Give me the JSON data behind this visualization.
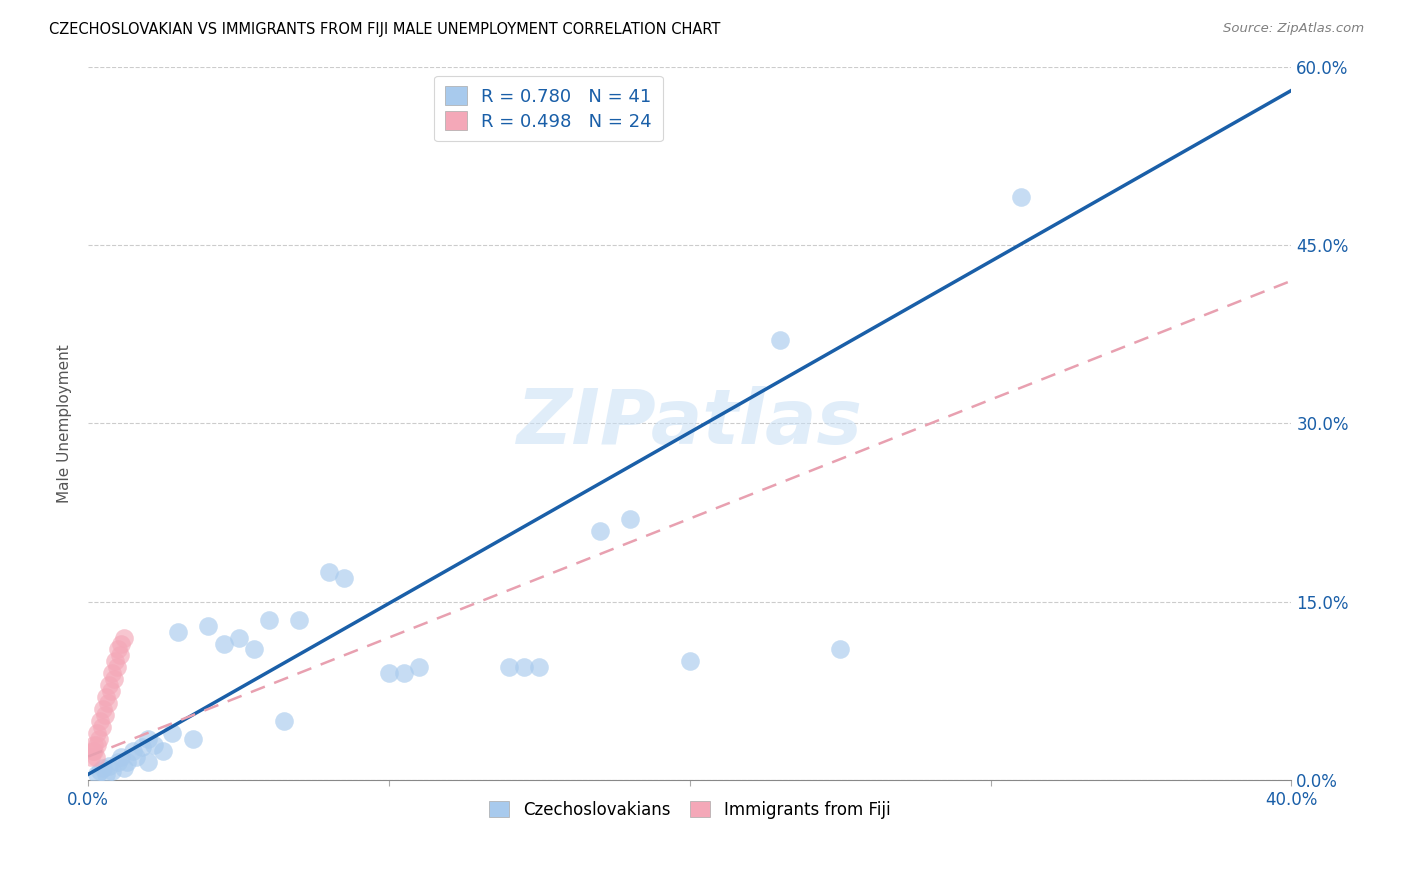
{
  "title": "CZECHOSLOVAKIAN VS IMMIGRANTS FROM FIJI MALE UNEMPLOYMENT CORRELATION CHART",
  "source": "Source: ZipAtlas.com",
  "ylabel": "Male Unemployment",
  "ytick_values": [
    0.0,
    15.0,
    30.0,
    45.0,
    60.0
  ],
  "xtick_values": [
    0.0,
    10.0,
    20.0,
    30.0,
    40.0
  ],
  "xtick_labels_show": [
    true,
    false,
    false,
    false,
    true
  ],
  "xlim": [
    0.0,
    40.0
  ],
  "ylim": [
    0.0,
    60.0
  ],
  "legend_blue": {
    "r": 0.78,
    "n": 41,
    "label": "Czechoslovakians"
  },
  "legend_pink": {
    "r": 0.498,
    "n": 24,
    "label": "Immigrants from Fiji"
  },
  "blue_color": "#A8CAED",
  "pink_color": "#F4A8B8",
  "blue_line_color": "#1A5FA8",
  "pink_line_color": "#E8A0B0",
  "watermark": "ZIPatlas",
  "blue_line": [
    [
      0.0,
      0.5
    ],
    [
      40.0,
      58.0
    ]
  ],
  "pink_line": [
    [
      0.0,
      2.0
    ],
    [
      40.0,
      42.0
    ]
  ],
  "blue_scatter": [
    [
      0.3,
      0.5
    ],
    [
      0.4,
      0.8
    ],
    [
      0.5,
      1.0
    ],
    [
      0.6,
      0.5
    ],
    [
      0.7,
      1.2
    ],
    [
      0.8,
      0.8
    ],
    [
      1.0,
      1.5
    ],
    [
      1.1,
      2.0
    ],
    [
      1.2,
      1.0
    ],
    [
      1.3,
      1.5
    ],
    [
      1.5,
      2.5
    ],
    [
      1.6,
      2.0
    ],
    [
      1.8,
      2.8
    ],
    [
      2.0,
      3.5
    ],
    [
      2.2,
      3.0
    ],
    [
      2.5,
      2.5
    ],
    [
      2.8,
      4.0
    ],
    [
      3.0,
      12.5
    ],
    [
      3.5,
      3.5
    ],
    [
      4.0,
      13.0
    ],
    [
      4.5,
      11.5
    ],
    [
      5.0,
      12.0
    ],
    [
      5.5,
      11.0
    ],
    [
      6.0,
      13.5
    ],
    [
      6.5,
      5.0
    ],
    [
      7.0,
      13.5
    ],
    [
      8.0,
      17.5
    ],
    [
      8.5,
      17.0
    ],
    [
      10.0,
      9.0
    ],
    [
      10.5,
      9.0
    ],
    [
      11.0,
      9.5
    ],
    [
      14.0,
      9.5
    ],
    [
      14.5,
      9.5
    ],
    [
      15.0,
      9.5
    ],
    [
      17.0,
      21.0
    ],
    [
      18.0,
      22.0
    ],
    [
      20.0,
      10.0
    ],
    [
      23.0,
      37.0
    ],
    [
      25.0,
      11.0
    ],
    [
      31.0,
      49.0
    ],
    [
      2.0,
      1.5
    ]
  ],
  "pink_scatter": [
    [
      0.1,
      2.0
    ],
    [
      0.15,
      2.5
    ],
    [
      0.2,
      3.0
    ],
    [
      0.25,
      2.0
    ],
    [
      0.3,
      4.0
    ],
    [
      0.35,
      3.5
    ],
    [
      0.4,
      5.0
    ],
    [
      0.45,
      4.5
    ],
    [
      0.5,
      6.0
    ],
    [
      0.55,
      5.5
    ],
    [
      0.6,
      7.0
    ],
    [
      0.65,
      6.5
    ],
    [
      0.7,
      8.0
    ],
    [
      0.75,
      7.5
    ],
    [
      0.8,
      9.0
    ],
    [
      0.85,
      8.5
    ],
    [
      0.9,
      10.0
    ],
    [
      0.95,
      9.5
    ],
    [
      1.0,
      11.0
    ],
    [
      1.05,
      10.5
    ],
    [
      1.1,
      11.5
    ],
    [
      1.2,
      12.0
    ],
    [
      0.2,
      2.5
    ],
    [
      0.3,
      3.0
    ]
  ]
}
